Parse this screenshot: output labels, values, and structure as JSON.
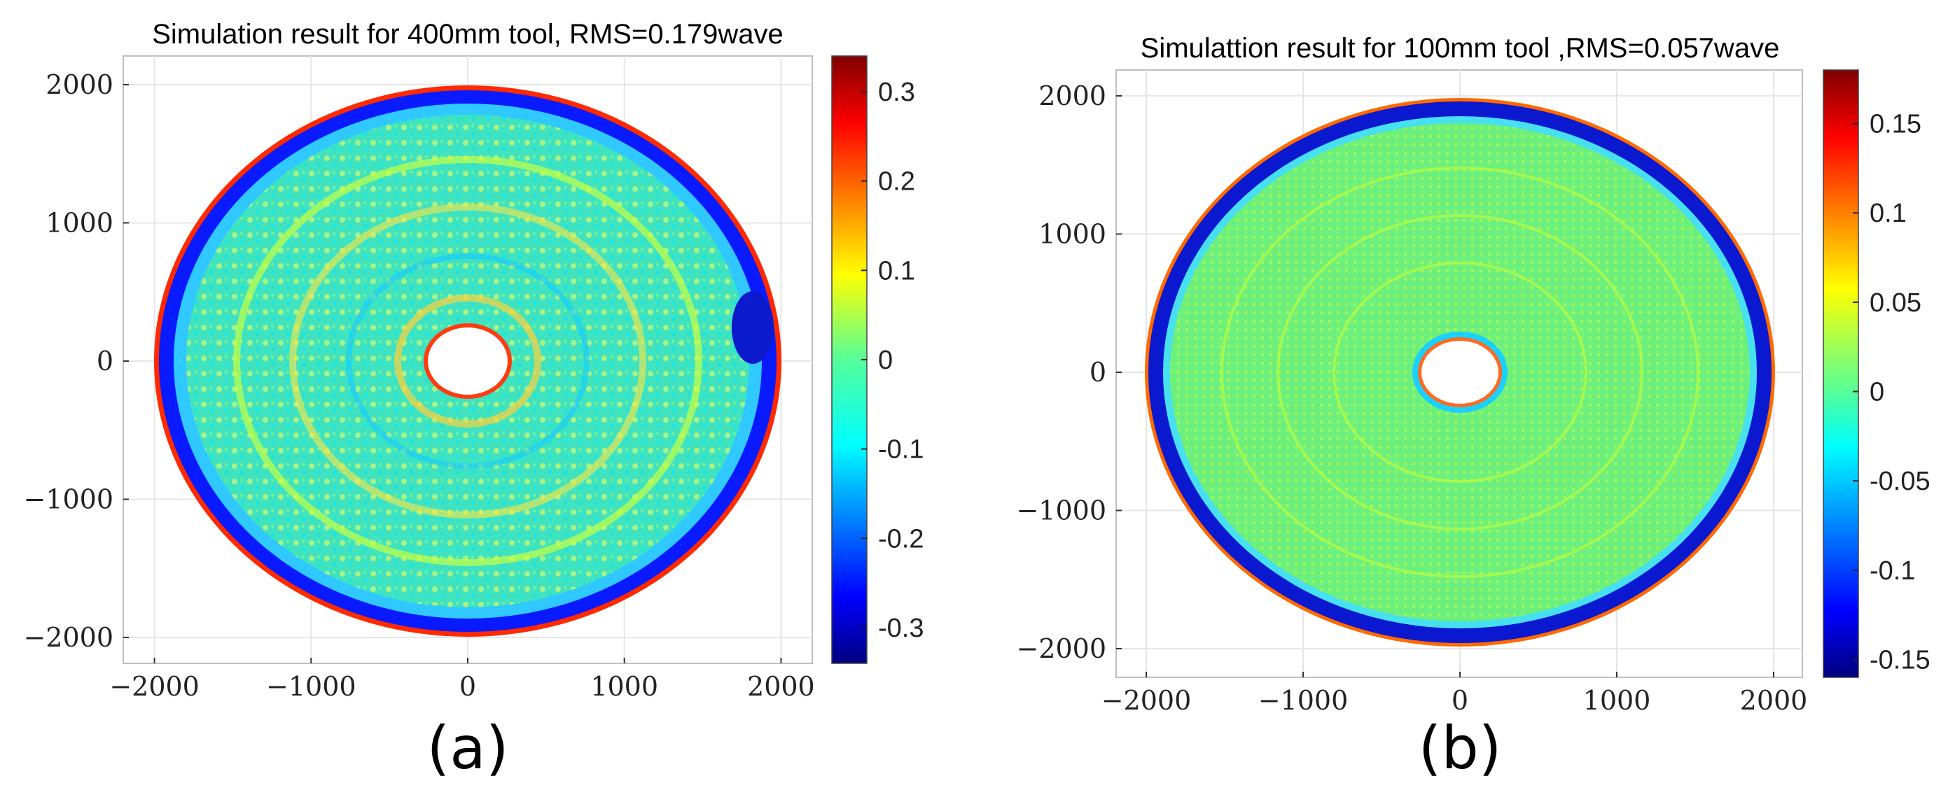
{
  "chart_data": [
    {
      "type": "heatmap",
      "panel_label": "(a)",
      "title": "Simulation result for 400mm tool, RMS=0.179wave",
      "xlabel": "",
      "ylabel": "",
      "xlim": [
        -2200,
        2200
      ],
      "ylim": [
        -2200,
        2200
      ],
      "xticks": [
        -2000,
        -1000,
        0,
        1000,
        2000
      ],
      "yticks": [
        -2000,
        -1000,
        0,
        1000,
        2000
      ],
      "xtick_labels": [
        "−2000",
        "−1000",
        "0",
        "1000",
        "2000"
      ],
      "ytick_labels": [
        "2000",
        "1000",
        "0",
        "−1000",
        "−2000"
      ],
      "outer_radius": 2000,
      "inner_radius": 280,
      "rms": "0.179wave",
      "colorbar": {
        "min": -0.34,
        "max": 0.34,
        "ticks": [
          0.3,
          0.2,
          0.1,
          0,
          -0.1,
          -0.2,
          -0.3
        ],
        "tick_labels": [
          "0.3",
          "0.2",
          "0.1",
          "0",
          "-0.1",
          "-0.2",
          "-0.3"
        ]
      },
      "grid": true,
      "colormap": "jet"
    },
    {
      "type": "heatmap",
      "panel_label": "(b)",
      "title": "Simulattion result for 100mm tool ,RMS=0.057wave",
      "xlabel": "",
      "ylabel": "",
      "xlim": [
        -2200,
        2200
      ],
      "ylim": [
        -2200,
        2200
      ],
      "xticks": [
        -2000,
        -1000,
        0,
        1000,
        2000
      ],
      "yticks": [
        -2000,
        -1000,
        0,
        1000,
        2000
      ],
      "xtick_labels": [
        "−2000",
        "−1000",
        "0",
        "1000",
        "2000"
      ],
      "ytick_labels": [
        "2000",
        "1000",
        "0",
        "−1000",
        "−2000"
      ],
      "outer_radius": 2000,
      "inner_radius": 280,
      "rms": "0.057wave",
      "colorbar": {
        "min": -0.16,
        "max": 0.18,
        "ticks": [
          0.15,
          0.1,
          0.05,
          0,
          -0.05,
          -0.1,
          -0.15
        ],
        "tick_labels": [
          "0.15",
          "0.1",
          "0.05",
          "0",
          "-0.05",
          "-0.1",
          "-0.15"
        ]
      },
      "grid": true,
      "colormap": "jet"
    }
  ],
  "colors": {
    "jet_dark_blue": "#00007f",
    "jet_blue": "#0000ff",
    "jet_cyan": "#00ffff",
    "jet_green": "#7fff7f",
    "jet_yellow": "#ffff00",
    "jet_red": "#ff0000",
    "jet_dark_red": "#7f0000",
    "surface_base_a": "#3fe3c0",
    "surface_base_b": "#6ff07a",
    "grid": "#e6e6e6",
    "axis": "#333333"
  }
}
